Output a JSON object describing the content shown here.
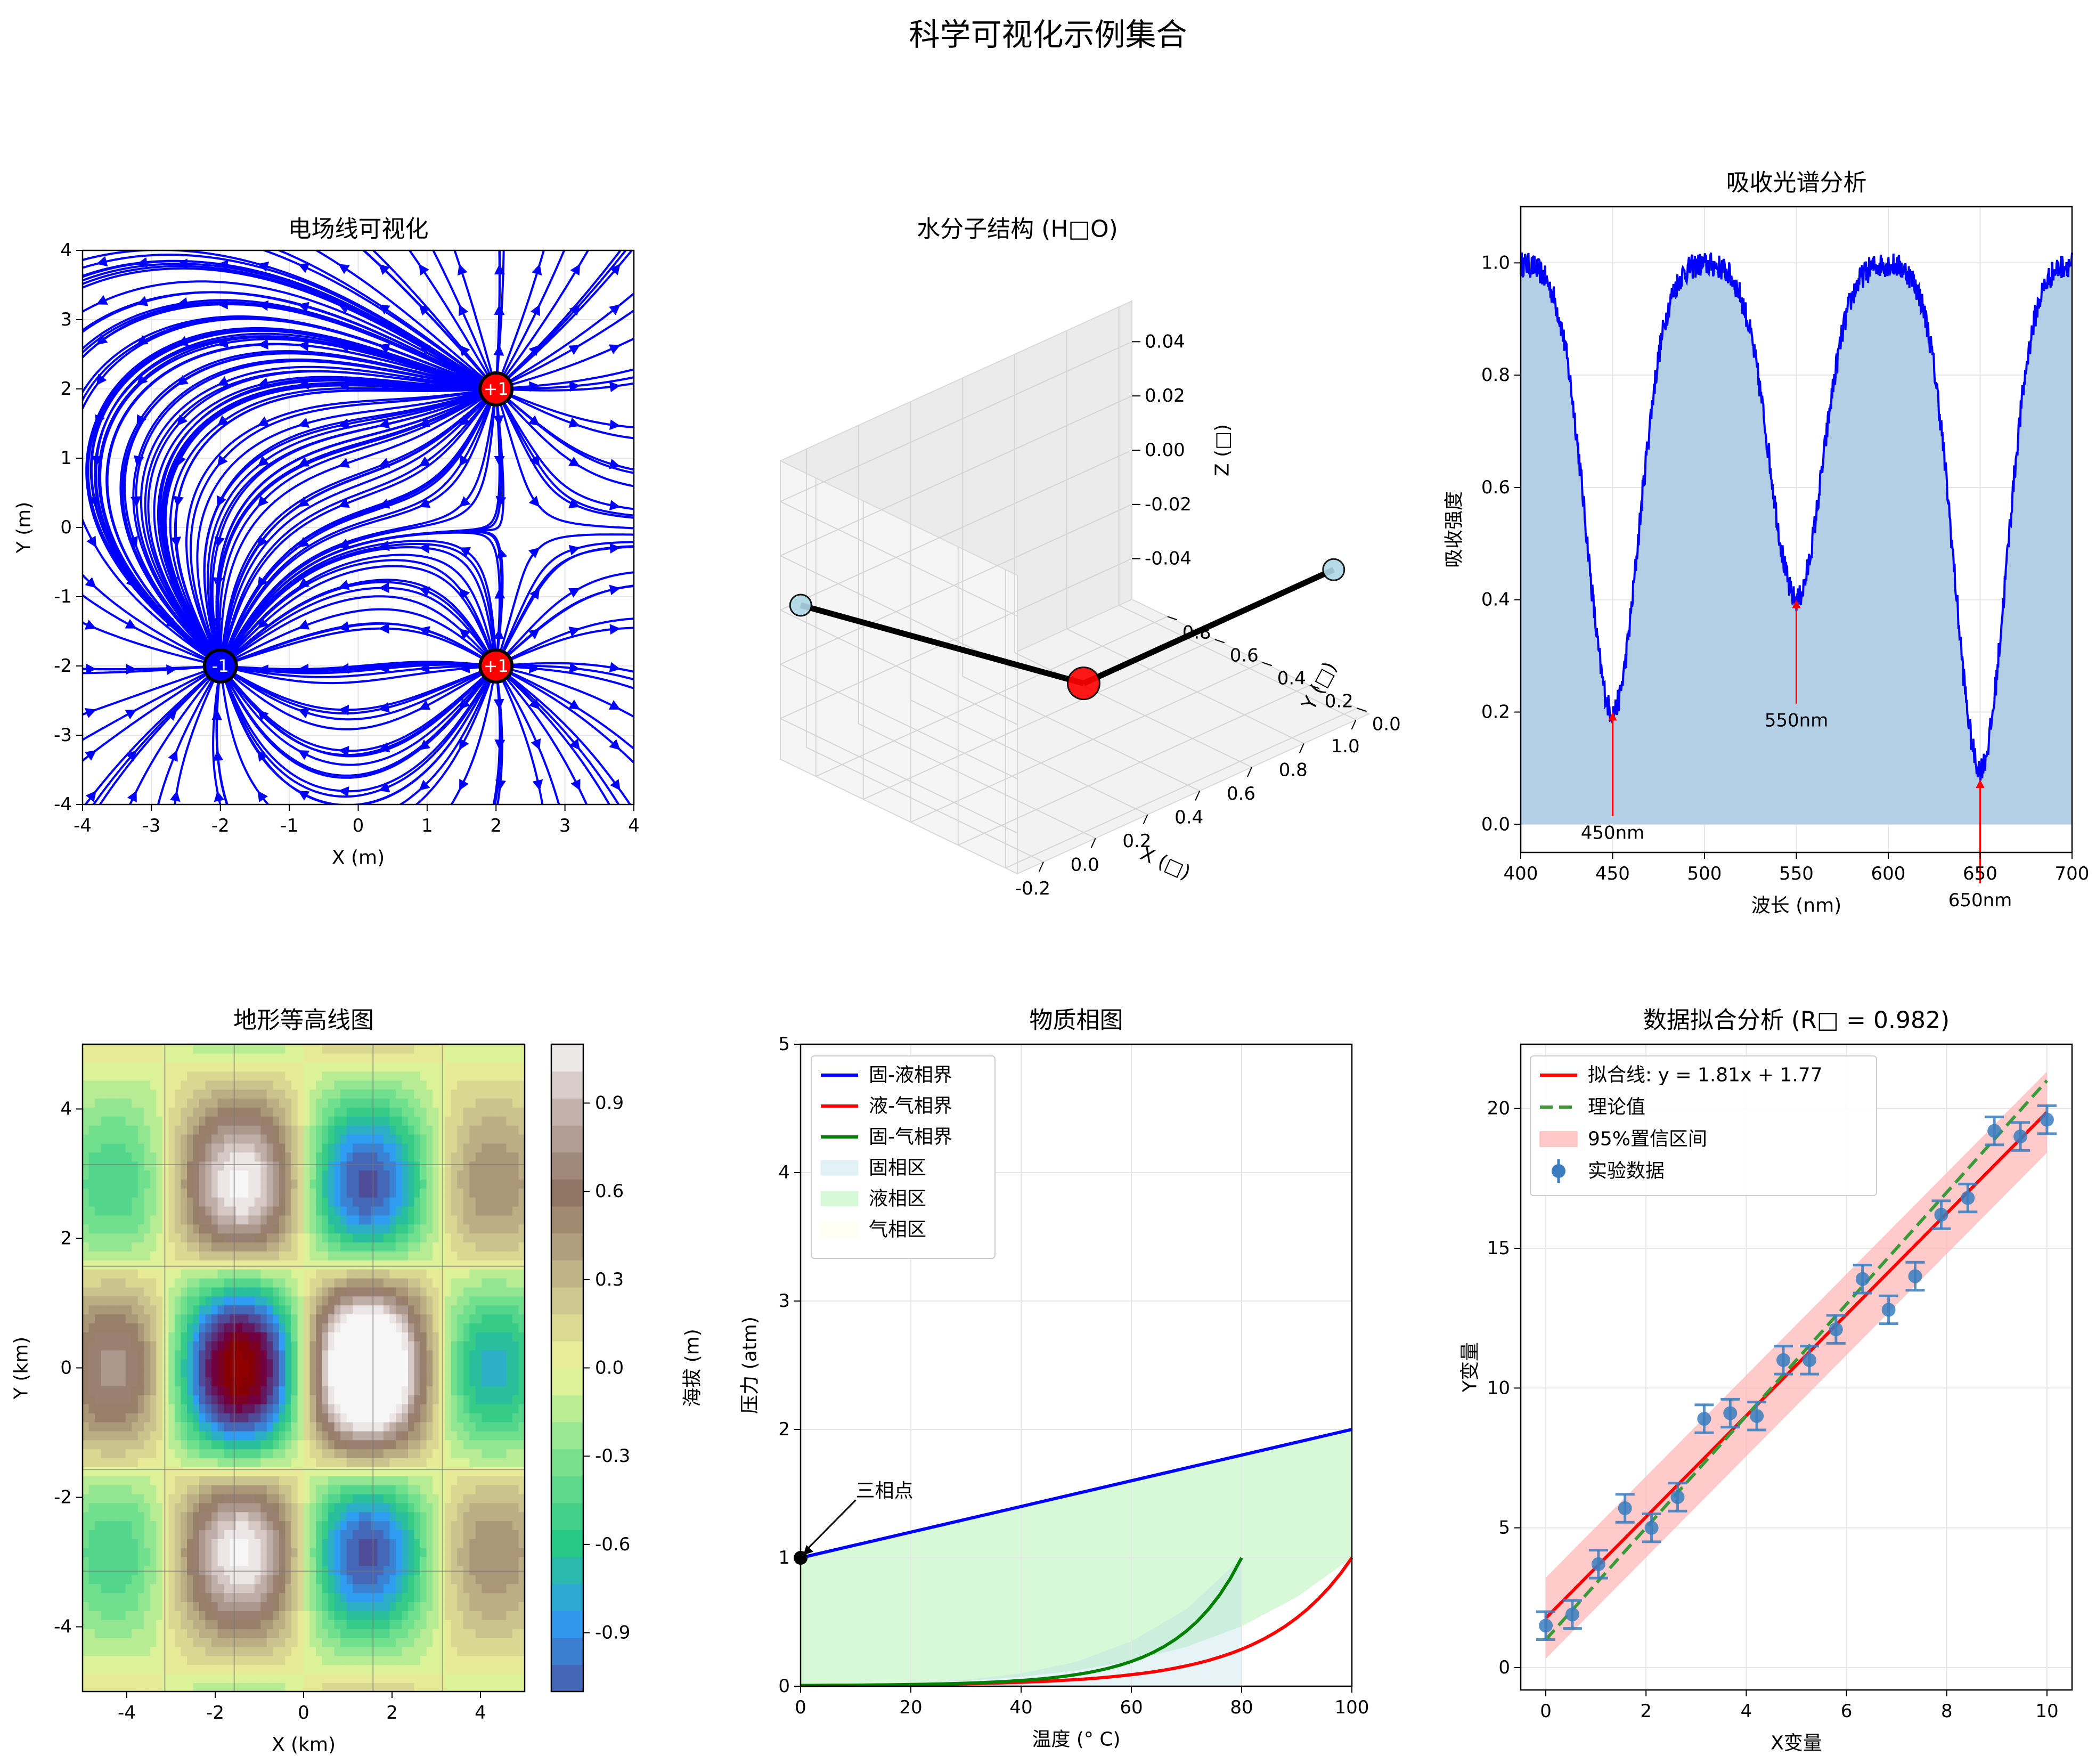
{
  "suptitle": "科学可视化示例集合",
  "chart_data": [
    {
      "type": "streamplot",
      "title": "电场线可视化",
      "xlabel": "X (m)",
      "ylabel": "Y (m)",
      "xlim": [
        -4,
        4
      ],
      "ylim": [
        -4,
        4
      ],
      "xticks": [
        "-4",
        "-3",
        "-2",
        "-1",
        "0",
        "1",
        "2",
        "3",
        "4"
      ],
      "yticks": [
        "-4",
        "-3",
        "-2",
        "-1",
        "0",
        "1",
        "2",
        "3",
        "4"
      ],
      "charges": [
        {
          "x": 2,
          "y": 2,
          "q": 1,
          "label": "+1",
          "color": "#ff0000"
        },
        {
          "x": -2,
          "y": -2,
          "q": -1,
          "label": "-1",
          "color": "#0000ff"
        },
        {
          "x": 2,
          "y": -2,
          "q": 1,
          "label": "+1",
          "color": "#ff0000"
        }
      ],
      "line_color": "#0000ff",
      "grid": true
    },
    {
      "type": "3d-scatter",
      "title": "水分子结构 (H□O)",
      "xlabel": "X (□)",
      "ylabel": "Y (□)",
      "zlabel": "Z (□)",
      "xticks": [
        "-0.2",
        "0.0",
        "0.2",
        "0.4",
        "0.6",
        "0.8",
        "1.0"
      ],
      "yticks": [
        "0.0",
        "0.2",
        "0.4",
        "0.6",
        "0.8"
      ],
      "zticks": [
        "0.04",
        "0.02",
        "0.00",
        "-0.02",
        "-0.04"
      ],
      "atoms": [
        {
          "name": "O",
          "x": 0,
          "y": 0,
          "z": 0,
          "color": "#ff0000"
        },
        {
          "name": "H",
          "x": 0.96,
          "y": 0,
          "z": 0,
          "color": "#add8e6"
        },
        {
          "name": "H",
          "x": -0.24,
          "y": 0.93,
          "z": 0,
          "color": "#add8e6"
        }
      ],
      "bonds": [
        [
          0,
          1
        ],
        [
          0,
          2
        ]
      ]
    },
    {
      "type": "area",
      "title": "吸收光谱分析",
      "xlabel": "波长 (nm)",
      "ylabel": "吸收强度",
      "xlim": [
        400,
        700
      ],
      "ylim": [
        -0.05,
        1.1
      ],
      "xticks": [
        "400",
        "450",
        "500",
        "550",
        "600",
        "650",
        "700"
      ],
      "yticks": [
        "0.0",
        "0.2",
        "0.4",
        "0.6",
        "0.8",
        "1.0"
      ],
      "peaks": [
        {
          "center": 450,
          "depth": 0.8,
          "label": "450nm",
          "min_value": 0.2
        },
        {
          "center": 550,
          "depth": 0.6,
          "label": "550nm",
          "min_value": 0.4
        },
        {
          "center": 650,
          "depth": 0.9,
          "label": "650nm",
          "min_value": 0.08
        }
      ],
      "line_color": "#0000ff",
      "fill_color": "#b3cfe6",
      "grid": true
    },
    {
      "type": "contourf",
      "title": "地形等高线图",
      "xlabel": "X (km)",
      "ylabel": "Y (km)",
      "xlim": [
        -5,
        5
      ],
      "ylim": [
        -5,
        5
      ],
      "xticks": [
        "-4",
        "-2",
        "0",
        "2",
        "4"
      ],
      "yticks": [
        "-4",
        "-2",
        "0",
        "2",
        "4"
      ],
      "colorbar_label": "海拔 (m)",
      "colorbar_ticks": [
        "0.9",
        "0.6",
        "0.3",
        "0.0",
        "-0.3",
        "-0.6",
        "-0.9"
      ],
      "colorbar_range": [
        -1.1,
        1.1
      ],
      "colormap": "terrain"
    },
    {
      "type": "line",
      "title": "物质相图",
      "xlabel": "温度 (° C)",
      "ylabel": "压力 (atm)",
      "xlim": [
        0,
        100
      ],
      "ylim": [
        0,
        5
      ],
      "xticks": [
        "0",
        "20",
        "40",
        "60",
        "80",
        "100"
      ],
      "yticks": [
        "0",
        "1",
        "2",
        "3",
        "4",
        "5"
      ],
      "series": [
        {
          "name": "固-液相界",
          "color": "#0000ff",
          "x": [
            0,
            100
          ],
          "y": [
            1,
            2
          ]
        },
        {
          "name": "液-气相界",
          "color": "#ff0000",
          "x": [
            0,
            10,
            20,
            30,
            40,
            50,
            60,
            70,
            80,
            90,
            100
          ],
          "y": [
            0.006,
            0.012,
            0.023,
            0.042,
            0.073,
            0.122,
            0.197,
            0.307,
            0.467,
            0.694,
            1.0
          ]
        },
        {
          "name": "固-气相界",
          "color": "#008000",
          "x": [
            0,
            10,
            20,
            30,
            40,
            50,
            60,
            70,
            80
          ],
          "y": [
            0.006,
            0.012,
            0.025,
            0.05,
            0.1,
            0.19,
            0.35,
            0.6,
            1.0
          ]
        }
      ],
      "regions": [
        {
          "name": "固相区",
          "color": "#add8e6"
        },
        {
          "name": "液相区",
          "color": "#90ee90"
        },
        {
          "name": "气相区",
          "color": "#ffffe0"
        }
      ],
      "annotation": {
        "text": "三相点",
        "x": 0.01,
        "y": 1.0
      },
      "grid": true
    },
    {
      "type": "scatter",
      "title": "数据拟合分析 (R□ = 0.982)",
      "xlabel": "X变量",
      "ylabel": "Y变量",
      "xlim": [
        -0.5,
        10.5
      ],
      "ylim": [
        -0.8,
        22.3
      ],
      "xticks": [
        "0",
        "2",
        "4",
        "6",
        "8",
        "10"
      ],
      "yticks": [
        "0",
        "5",
        "10",
        "15",
        "20"
      ],
      "fit": {
        "name": "拟合线: y = 1.81x + 1.77",
        "slope": 1.81,
        "intercept": 1.77,
        "color": "#ff0000"
      },
      "theory": {
        "name": "理论值",
        "slope": 2,
        "intercept": 1,
        "color": "#3a9a3a"
      },
      "band": {
        "name": "95%置信区间",
        "half_width": 1.45,
        "color": "#ffb3b3"
      },
      "data_label": "实验数据",
      "points": [
        {
          "x": 0.0,
          "y": 1.5
        },
        {
          "x": 0.53,
          "y": 1.9
        },
        {
          "x": 1.05,
          "y": 3.7
        },
        {
          "x": 1.58,
          "y": 5.7
        },
        {
          "x": 2.11,
          "y": 5.0
        },
        {
          "x": 2.63,
          "y": 6.1
        },
        {
          "x": 3.16,
          "y": 8.9
        },
        {
          "x": 3.68,
          "y": 9.1
        },
        {
          "x": 4.21,
          "y": 9.0
        },
        {
          "x": 4.74,
          "y": 11.0
        },
        {
          "x": 5.26,
          "y": 11.0
        },
        {
          "x": 5.79,
          "y": 12.1
        },
        {
          "x": 6.32,
          "y": 13.9
        },
        {
          "x": 6.84,
          "y": 12.8
        },
        {
          "x": 7.37,
          "y": 14.0
        },
        {
          "x": 7.89,
          "y": 16.2
        },
        {
          "x": 8.42,
          "y": 16.8
        },
        {
          "x": 8.95,
          "y": 19.2
        },
        {
          "x": 9.47,
          "y": 19.0
        },
        {
          "x": 10.0,
          "y": 19.6
        }
      ],
      "error": 0.5,
      "point_color": "#3a7ebf",
      "grid": true
    }
  ]
}
